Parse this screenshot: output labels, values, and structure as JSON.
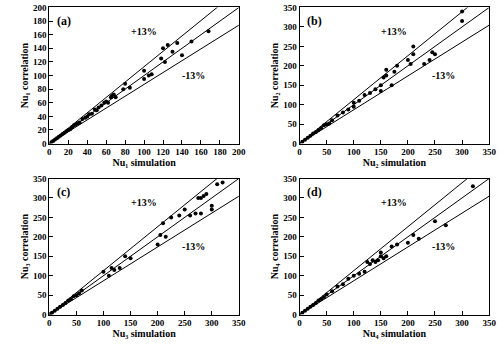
{
  "chart_data": [
    {
      "type": "scatter",
      "title": "(a)",
      "x_label": "Nu₁ simulation",
      "y_label": "Nu₁ correlation",
      "color": "#000000",
      "marker": "circle",
      "grid": false,
      "x": [
        2,
        4,
        6,
        8,
        10,
        12,
        14,
        16,
        18,
        20,
        22,
        24,
        26,
        28,
        30,
        32,
        35,
        38,
        40,
        42,
        45,
        48,
        50,
        52,
        55,
        58,
        60,
        62,
        65,
        66,
        68,
        70,
        78,
        80,
        85,
        100,
        100,
        105,
        108,
        118,
        120,
        122,
        125,
        130,
        135,
        140,
        150,
        168
      ],
      "values": [
        2,
        4,
        6,
        8,
        10,
        12,
        14,
        16,
        18,
        20,
        21,
        24,
        27,
        28,
        30,
        31,
        36,
        38,
        40,
        43,
        44,
        50,
        49,
        53,
        56,
        60,
        62,
        60,
        68,
        70,
        72,
        68,
        80,
        88,
        82,
        95,
        107,
        100,
        102,
        125,
        140,
        120,
        145,
        135,
        148,
        130,
        150,
        165
      ],
      "xlim": [
        0,
        200
      ],
      "ylim": [
        0,
        200
      ],
      "xticks": [
        0,
        20,
        40,
        60,
        80,
        100,
        120,
        140,
        160,
        180,
        200
      ],
      "yticks": [
        0,
        20,
        40,
        60,
        80,
        100,
        120,
        140,
        160,
        180,
        200
      ],
      "ref_lines": [
        {
          "slope": 1.13,
          "label": "+13%"
        },
        {
          "slope": 1
        },
        {
          "slope": 0.87,
          "label": "-13%"
        }
      ]
    },
    {
      "type": "scatter",
      "title": "(b)",
      "x_label": "Nu₂ simulation",
      "y_label": "Nu₂ correlation",
      "color": "#000000",
      "marker": "circle",
      "grid": false,
      "x": [
        5,
        10,
        15,
        20,
        25,
        30,
        35,
        40,
        45,
        50,
        55,
        60,
        70,
        80,
        90,
        100,
        100,
        110,
        120,
        130,
        140,
        150,
        150,
        155,
        160,
        160,
        170,
        175,
        180,
        200,
        205,
        210,
        210,
        230,
        240,
        245,
        250,
        300,
        300
      ],
      "values": [
        5,
        10,
        15,
        20,
        26,
        30,
        35,
        40,
        47,
        50,
        52,
        60,
        72,
        80,
        88,
        105,
        95,
        110,
        125,
        130,
        140,
        150,
        135,
        170,
        175,
        190,
        150,
        185,
        200,
        215,
        205,
        230,
        250,
        205,
        215,
        235,
        230,
        340,
        315
      ],
      "xlim": [
        0,
        350
      ],
      "ylim": [
        0,
        350
      ],
      "xticks": [
        0,
        50,
        100,
        150,
        200,
        250,
        300,
        350
      ],
      "yticks": [
        0,
        50,
        100,
        150,
        200,
        250,
        300,
        350
      ],
      "ref_lines": [
        {
          "slope": 1.13,
          "label": "+13%"
        },
        {
          "slope": 1
        },
        {
          "slope": 0.87,
          "label": "-13%"
        }
      ]
    },
    {
      "type": "scatter",
      "title": "(c)",
      "x_label": "Nu₃ simulation",
      "y_label": "Nu₃ correlation",
      "color": "#000000",
      "marker": "circle",
      "grid": false,
      "x": [
        2,
        5,
        10,
        15,
        20,
        25,
        30,
        35,
        40,
        45,
        50,
        55,
        60,
        100,
        110,
        115,
        120,
        130,
        140,
        150,
        200,
        205,
        210,
        215,
        225,
        240,
        250,
        260,
        270,
        275,
        280,
        280,
        285,
        290,
        300,
        300,
        310,
        320
      ],
      "values": [
        2,
        5,
        10,
        15,
        20,
        25,
        30,
        36,
        40,
        47,
        50,
        55,
        62,
        110,
        100,
        120,
        115,
        120,
        150,
        145,
        180,
        205,
        235,
        200,
        250,
        255,
        270,
        255,
        260,
        300,
        300,
        260,
        305,
        310,
        280,
        270,
        335,
        340
      ],
      "xlim": [
        0,
        350
      ],
      "ylim": [
        0,
        350
      ],
      "xticks": [
        0,
        50,
        100,
        150,
        200,
        250,
        300,
        350
      ],
      "yticks": [
        0,
        50,
        100,
        150,
        200,
        250,
        300,
        350
      ],
      "ref_lines": [
        {
          "slope": 1.13,
          "label": "+13%"
        },
        {
          "slope": 1
        },
        {
          "slope": 0.87,
          "label": "-13%"
        }
      ]
    },
    {
      "type": "scatter",
      "title": "(d)",
      "x_label": "Nu₄ simulation",
      "y_label": "Nu₄ correlation",
      "color": "#000000",
      "marker": "circle",
      "grid": false,
      "x": [
        5,
        10,
        15,
        20,
        25,
        30,
        35,
        40,
        45,
        50,
        60,
        70,
        80,
        90,
        100,
        110,
        120,
        125,
        130,
        135,
        140,
        145,
        150,
        150,
        155,
        160,
        170,
        180,
        200,
        210,
        220,
        250,
        270,
        320
      ],
      "values": [
        5,
        10,
        15,
        20,
        25,
        30,
        36,
        40,
        45,
        52,
        60,
        72,
        78,
        92,
        100,
        105,
        110,
        135,
        130,
        140,
        135,
        140,
        160,
        150,
        145,
        150,
        175,
        180,
        185,
        205,
        195,
        240,
        230,
        330
      ],
      "xlim": [
        0,
        350
      ],
      "ylim": [
        0,
        350
      ],
      "xticks": [
        0,
        50,
        100,
        150,
        200,
        250,
        300,
        350
      ],
      "yticks": [
        0,
        50,
        100,
        150,
        200,
        250,
        300,
        350
      ],
      "ref_lines": [
        {
          "slope": 1.13,
          "label": "+13%"
        },
        {
          "slope": 1
        },
        {
          "slope": 0.87,
          "label": "-13%"
        }
      ]
    }
  ]
}
